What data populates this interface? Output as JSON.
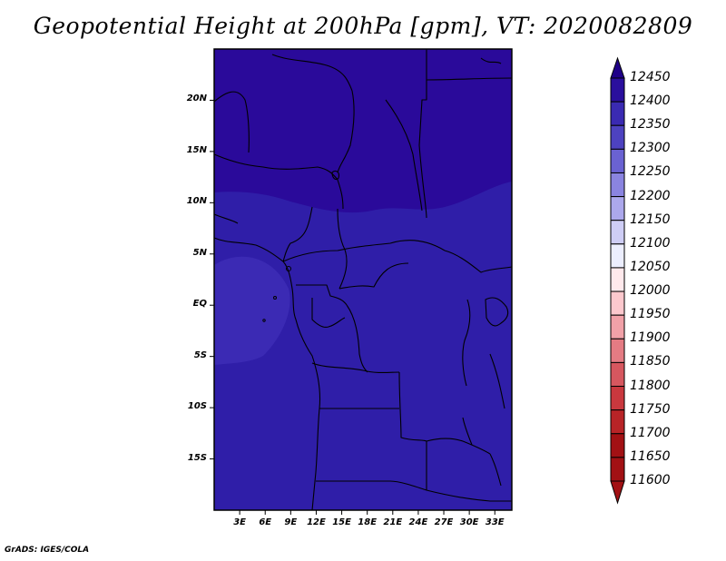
{
  "title": "Geopotential Height at 200hPa [gpm], VT: 2020082809",
  "credit": "GrADS: IGES/COLA",
  "map": {
    "lon_range": [
      0,
      35
    ],
    "lat_range": [
      -20,
      25
    ],
    "lat_ticks": [
      {
        "value": 20,
        "label": "20N"
      },
      {
        "value": 15,
        "label": "15N"
      },
      {
        "value": 10,
        "label": "10N"
      },
      {
        "value": 5,
        "label": "5N"
      },
      {
        "value": 0,
        "label": "EQ"
      },
      {
        "value": -5,
        "label": "5S"
      },
      {
        "value": -10,
        "label": "10S"
      },
      {
        "value": -15,
        "label": "15S"
      }
    ],
    "lon_ticks": [
      {
        "value": 3,
        "label": "3E"
      },
      {
        "value": 6,
        "label": "6E"
      },
      {
        "value": 9,
        "label": "9E"
      },
      {
        "value": 12,
        "label": "12E"
      },
      {
        "value": 15,
        "label": "15E"
      },
      {
        "value": 18,
        "label": "18E"
      },
      {
        "value": 21,
        "label": "21E"
      },
      {
        "value": 24,
        "label": "24E"
      },
      {
        "value": 27,
        "label": "27E"
      },
      {
        "value": 30,
        "label": "30E"
      },
      {
        "value": 33,
        "label": "33E"
      }
    ],
    "field_colors": {
      "above_12400": "#2a0a9a",
      "12350_12400": "#2f1ea8",
      "12300_12350": "#3b2ab4"
    }
  },
  "colorbar": {
    "levels": [
      "12450",
      "12400",
      "12350",
      "12300",
      "12250",
      "12200",
      "12150",
      "12100",
      "12050",
      "12000",
      "11950",
      "11900",
      "11850",
      "11800",
      "11750",
      "11700",
      "11650",
      "11600"
    ],
    "colors": [
      "#1f0088",
      "#2a0f9d",
      "#3a2ab2",
      "#4d42c0",
      "#6a62d2",
      "#8a84e0",
      "#aca8ec",
      "#cecdf5",
      "#eceefe",
      "#ffe9ec",
      "#fcc8cd",
      "#f1a1a8",
      "#e47b83",
      "#d6575f",
      "#c9383e",
      "#b82427",
      "#a21114"
    ]
  }
}
